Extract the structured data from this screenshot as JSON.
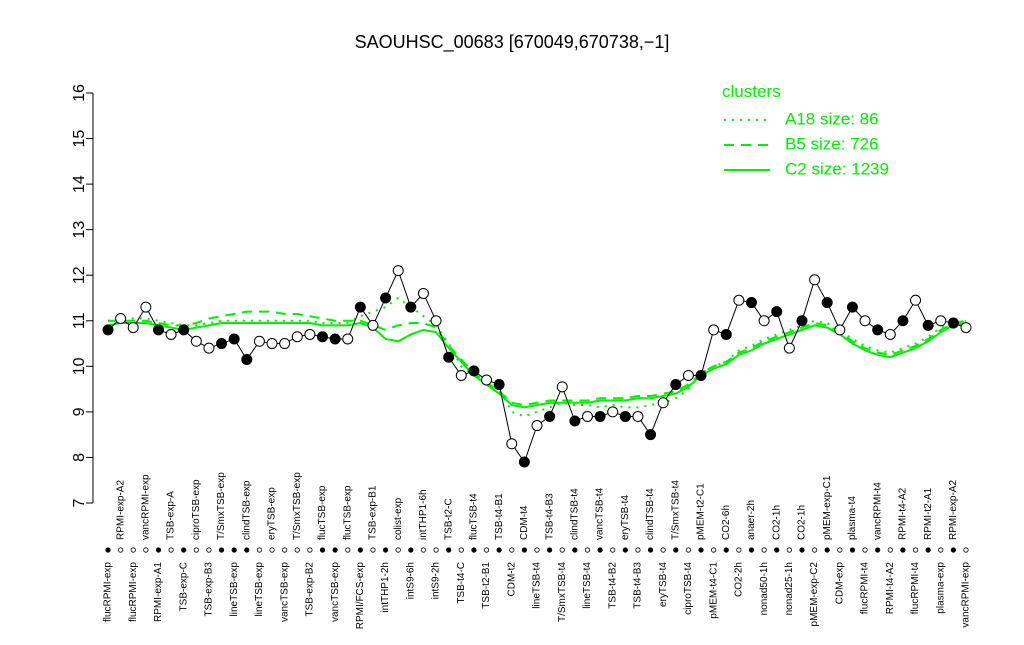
{
  "chart_data": {
    "type": "scatter",
    "title": "SAOUHSC_00683 [670049,670738,−1]",
    "ylim": [
      7,
      16
    ],
    "yticks": [
      7,
      8,
      9,
      10,
      11,
      12,
      13,
      14,
      15,
      16
    ],
    "categories": [
      "flucRPMI-exp",
      "RPMI-exp-A2",
      "flucRPMI-exp",
      "vancRPMI-exp",
      "RPMI-exp-A1",
      "TSB-exp-A",
      "TSB-exp-C",
      "ciproTSB-exp",
      "TSB-exp-B3",
      "T/SmxTSB-exp",
      "lineTSB-exp",
      "clindTSB-exp",
      "lineTSB-exp",
      "eryTSB-exp",
      "vancTSB-exp",
      "T/SmxTSB-exp",
      "TSB-exp-B2",
      "flucTSB-exp",
      "vancTSB-exp",
      "flucTSB-exp",
      "RPMI/FCS-exp",
      "TSB-exp-B1",
      "intTHP1-2h",
      "colist-exp",
      "intS9-6h",
      "intTHP1-6h",
      "intS9-2h",
      "TSB-t2-C",
      "TSB-t4-C",
      "flucTSB-t4",
      "TSB-t2-B1",
      "TSB-t4-B1",
      "CDM-t2",
      "CDM-t4",
      "lineTSB-t4",
      "TSB-t4-B3",
      "T/SmxTSB-t4",
      "clindTSB-t4",
      "lineTSB-t4",
      "vancTSB-t4",
      "TSB-t4-B2",
      "eryTSB-t4",
      "TSB-t4-B3",
      "clindTSB-t4",
      "eryTSB-t4",
      "T/SmxTSB-t4",
      "ciproTSB-t4",
      "pMEM-t2-C1",
      "pMEM-t4-C1",
      "CO2-6h",
      "CO2-2h",
      "anaer-2h",
      "nonad50-1h",
      "CO2-1h",
      "nonad25-1h",
      "CO2-1h",
      "pMEM-exp-C2",
      "pMEM-exp-C1",
      "CDM-exp",
      "plasma-t4",
      "flucRPMI-t4",
      "vancRPMI-t4",
      "RPMI-t4-A2",
      "RPMI-t4-A2",
      "flucRPMI-t4",
      "RPMI-t2-A1",
      "plasma-exp",
      "RPMI-exp-A2",
      "vancRPMI-exp"
    ],
    "values": [
      10.8,
      11.05,
      10.85,
      11.3,
      10.8,
      10.7,
      10.8,
      10.55,
      10.4,
      10.5,
      10.6,
      10.15,
      10.55,
      10.5,
      10.5,
      10.65,
      10.7,
      10.65,
      10.6,
      10.6,
      11.3,
      10.9,
      11.5,
      12.1,
      11.3,
      11.6,
      11.0,
      10.2,
      9.8,
      9.9,
      9.7,
      9.6,
      8.3,
      7.9,
      8.7,
      8.9,
      9.55,
      8.8,
      8.9,
      8.9,
      9.0,
      8.9,
      8.9,
      8.5,
      9.2,
      9.6,
      9.8,
      9.8,
      10.8,
      10.7,
      11.45,
      11.4,
      11.0,
      11.2,
      10.4,
      11.0,
      11.9,
      11.4,
      10.8,
      11.3,
      11.0,
      10.8,
      10.7,
      11.0,
      11.45,
      10.9,
      11.0,
      10.95,
      10.85
    ],
    "colors": [
      "black",
      "white",
      "white",
      "white",
      "black",
      "white",
      "black",
      "white",
      "white",
      "black",
      "black",
      "black",
      "white",
      "white",
      "white",
      "white",
      "white",
      "black",
      "black",
      "white",
      "black",
      "white",
      "black",
      "white",
      "black",
      "white",
      "white",
      "black",
      "white",
      "black",
      "white",
      "black",
      "white",
      "black",
      "white",
      "black",
      "white",
      "black",
      "white",
      "black",
      "white",
      "black",
      "white",
      "black",
      "white",
      "black",
      "white",
      "black",
      "white",
      "black",
      "white",
      "black",
      "white",
      "black",
      "white",
      "black",
      "white",
      "black",
      "white",
      "black",
      "white",
      "black",
      "white",
      "black",
      "white",
      "black",
      "white",
      "black",
      "white"
    ],
    "legend_title": "clusters",
    "series": [
      {
        "name": "A18 size: 86",
        "color": "#00ee00",
        "style": "dotted",
        "values": [
          11.0,
          11.05,
          11.05,
          11.05,
          11.0,
          10.95,
          10.9,
          10.9,
          10.95,
          11.0,
          11.0,
          11.0,
          11.0,
          11.0,
          11.0,
          11.0,
          11.0,
          10.95,
          10.95,
          10.95,
          11.1,
          11.2,
          11.3,
          11.5,
          11.3,
          11.1,
          10.9,
          10.5,
          10.0,
          9.8,
          9.6,
          9.5,
          9.0,
          8.9,
          9.0,
          9.1,
          9.2,
          9.15,
          9.15,
          9.1,
          9.15,
          9.1,
          9.1,
          9.15,
          9.2,
          9.3,
          9.5,
          9.85,
          10.0,
          10.1,
          10.35,
          10.45,
          10.6,
          10.7,
          10.8,
          10.9,
          11.0,
          10.95,
          10.8,
          10.6,
          10.45,
          10.35,
          10.3,
          10.4,
          10.5,
          10.65,
          10.85,
          10.95,
          11.0
        ]
      },
      {
        "name": "B5 size: 726",
        "color": "#00ee00",
        "style": "dashed",
        "values": [
          11.0,
          11.0,
          11.0,
          11.0,
          10.95,
          10.9,
          10.9,
          10.95,
          11.05,
          11.1,
          11.15,
          11.2,
          11.2,
          11.2,
          11.15,
          11.15,
          11.1,
          11.05,
          11.0,
          11.0,
          11.0,
          10.9,
          10.8,
          10.9,
          10.95,
          10.95,
          10.85,
          10.45,
          10.15,
          9.85,
          9.65,
          9.45,
          9.2,
          9.15,
          9.2,
          9.25,
          9.25,
          9.25,
          9.25,
          9.3,
          9.3,
          9.3,
          9.35,
          9.35,
          9.4,
          9.45,
          9.6,
          9.85,
          10.0,
          10.1,
          10.3,
          10.4,
          10.55,
          10.65,
          10.75,
          10.85,
          10.95,
          10.9,
          10.75,
          10.55,
          10.4,
          10.3,
          10.25,
          10.35,
          10.45,
          10.6,
          10.8,
          10.95,
          11.0
        ]
      },
      {
        "name": "C2 size: 1239",
        "color": "#00ee00",
        "style": "solid",
        "values": [
          10.9,
          10.95,
          10.95,
          10.95,
          10.9,
          10.85,
          10.8,
          10.85,
          10.9,
          10.95,
          10.95,
          10.95,
          10.95,
          10.95,
          10.95,
          10.95,
          10.95,
          10.9,
          10.9,
          10.9,
          10.95,
          10.85,
          10.6,
          10.55,
          10.7,
          10.8,
          10.75,
          10.4,
          10.1,
          9.8,
          9.6,
          9.4,
          9.15,
          9.1,
          9.15,
          9.2,
          9.2,
          9.2,
          9.2,
          9.25,
          9.25,
          9.25,
          9.3,
          9.3,
          9.35,
          9.4,
          9.55,
          9.8,
          9.95,
          10.05,
          10.25,
          10.35,
          10.5,
          10.6,
          10.7,
          10.8,
          10.9,
          10.85,
          10.7,
          10.5,
          10.35,
          10.25,
          10.2,
          10.3,
          10.4,
          10.55,
          10.75,
          10.9,
          10.95
        ]
      }
    ]
  }
}
